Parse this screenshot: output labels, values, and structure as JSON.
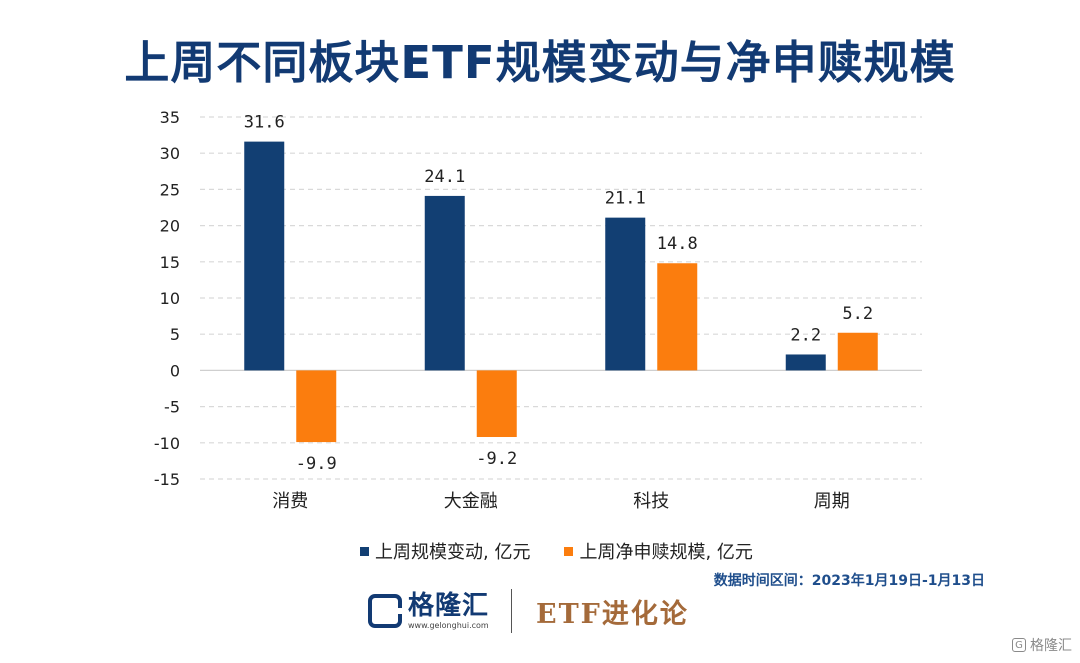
{
  "chart_data": {
    "type": "bar",
    "title": "上周不同板块ETF规模变动与净申赎规模",
    "categories": [
      "消费",
      "大金融",
      "科技",
      "周期"
    ],
    "series": [
      {
        "name": "上周规模变动, 亿元",
        "color": "#123f73",
        "values": [
          31.6,
          24.1,
          21.1,
          2.2
        ],
        "labels": [
          "31.6",
          "24.1",
          "21.1",
          "2.2"
        ]
      },
      {
        "name": "上周净申赎规模, 亿元",
        "color": "#fb7d0e",
        "values": [
          -9.9,
          -9.2,
          14.8,
          5.2
        ],
        "labels": [
          "-9.9",
          "-9.2",
          "14.8",
          "5.2"
        ]
      }
    ],
    "ylim": [
      -15,
      35
    ],
    "yticks": [
      35,
      30,
      25,
      20,
      15,
      10,
      5,
      0,
      -5,
      -10,
      -15
    ],
    "grid": true,
    "legend_position": "bottom"
  },
  "note": "数据时间区间：2023年1月19日-1月13日",
  "footer": {
    "logo_name": "格隆汇",
    "logo_url": "www.gelonghui.com",
    "brand": "ETF进化论"
  },
  "watermark": {
    "mark": "G",
    "text": "格隆汇"
  }
}
